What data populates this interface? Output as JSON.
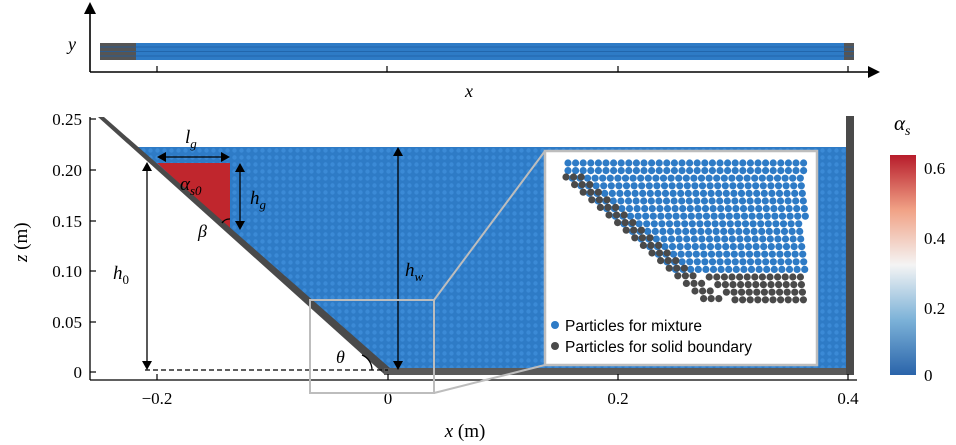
{
  "top_view": {
    "y_label": "y",
    "x_label": "x"
  },
  "main": {
    "z_label": "z",
    "z_unit": "(m)",
    "x_label": "x",
    "x_unit": "(m)",
    "z_ticks": [
      "0.25",
      "0.20",
      "0.15",
      "0.10",
      "0.05",
      "0"
    ],
    "x_ticks": [
      "−0.2",
      "0",
      "0.2",
      "0.4"
    ]
  },
  "annotations": {
    "lg_main": "l",
    "lg_sub": "g",
    "hg_main": "h",
    "hg_sub": "g",
    "h0_main": "h",
    "h0_sub": "0",
    "hw_main": "h",
    "hw_sub": "w",
    "alpha_s0_main": "α",
    "alpha_s0_sub": "s0",
    "beta": "β",
    "theta": "θ"
  },
  "inset_legend": {
    "mixture": "Particles for mixture",
    "boundary": "Particles for solid boundary"
  },
  "colorbar": {
    "title_main": "α",
    "title_sub": "s",
    "ticks": [
      "0.6",
      "0.4",
      "0.2",
      "0"
    ]
  },
  "colors": {
    "mixture": "#2e7bc6",
    "boundary": "#4a4a4a",
    "granular": "#c0262d"
  }
}
